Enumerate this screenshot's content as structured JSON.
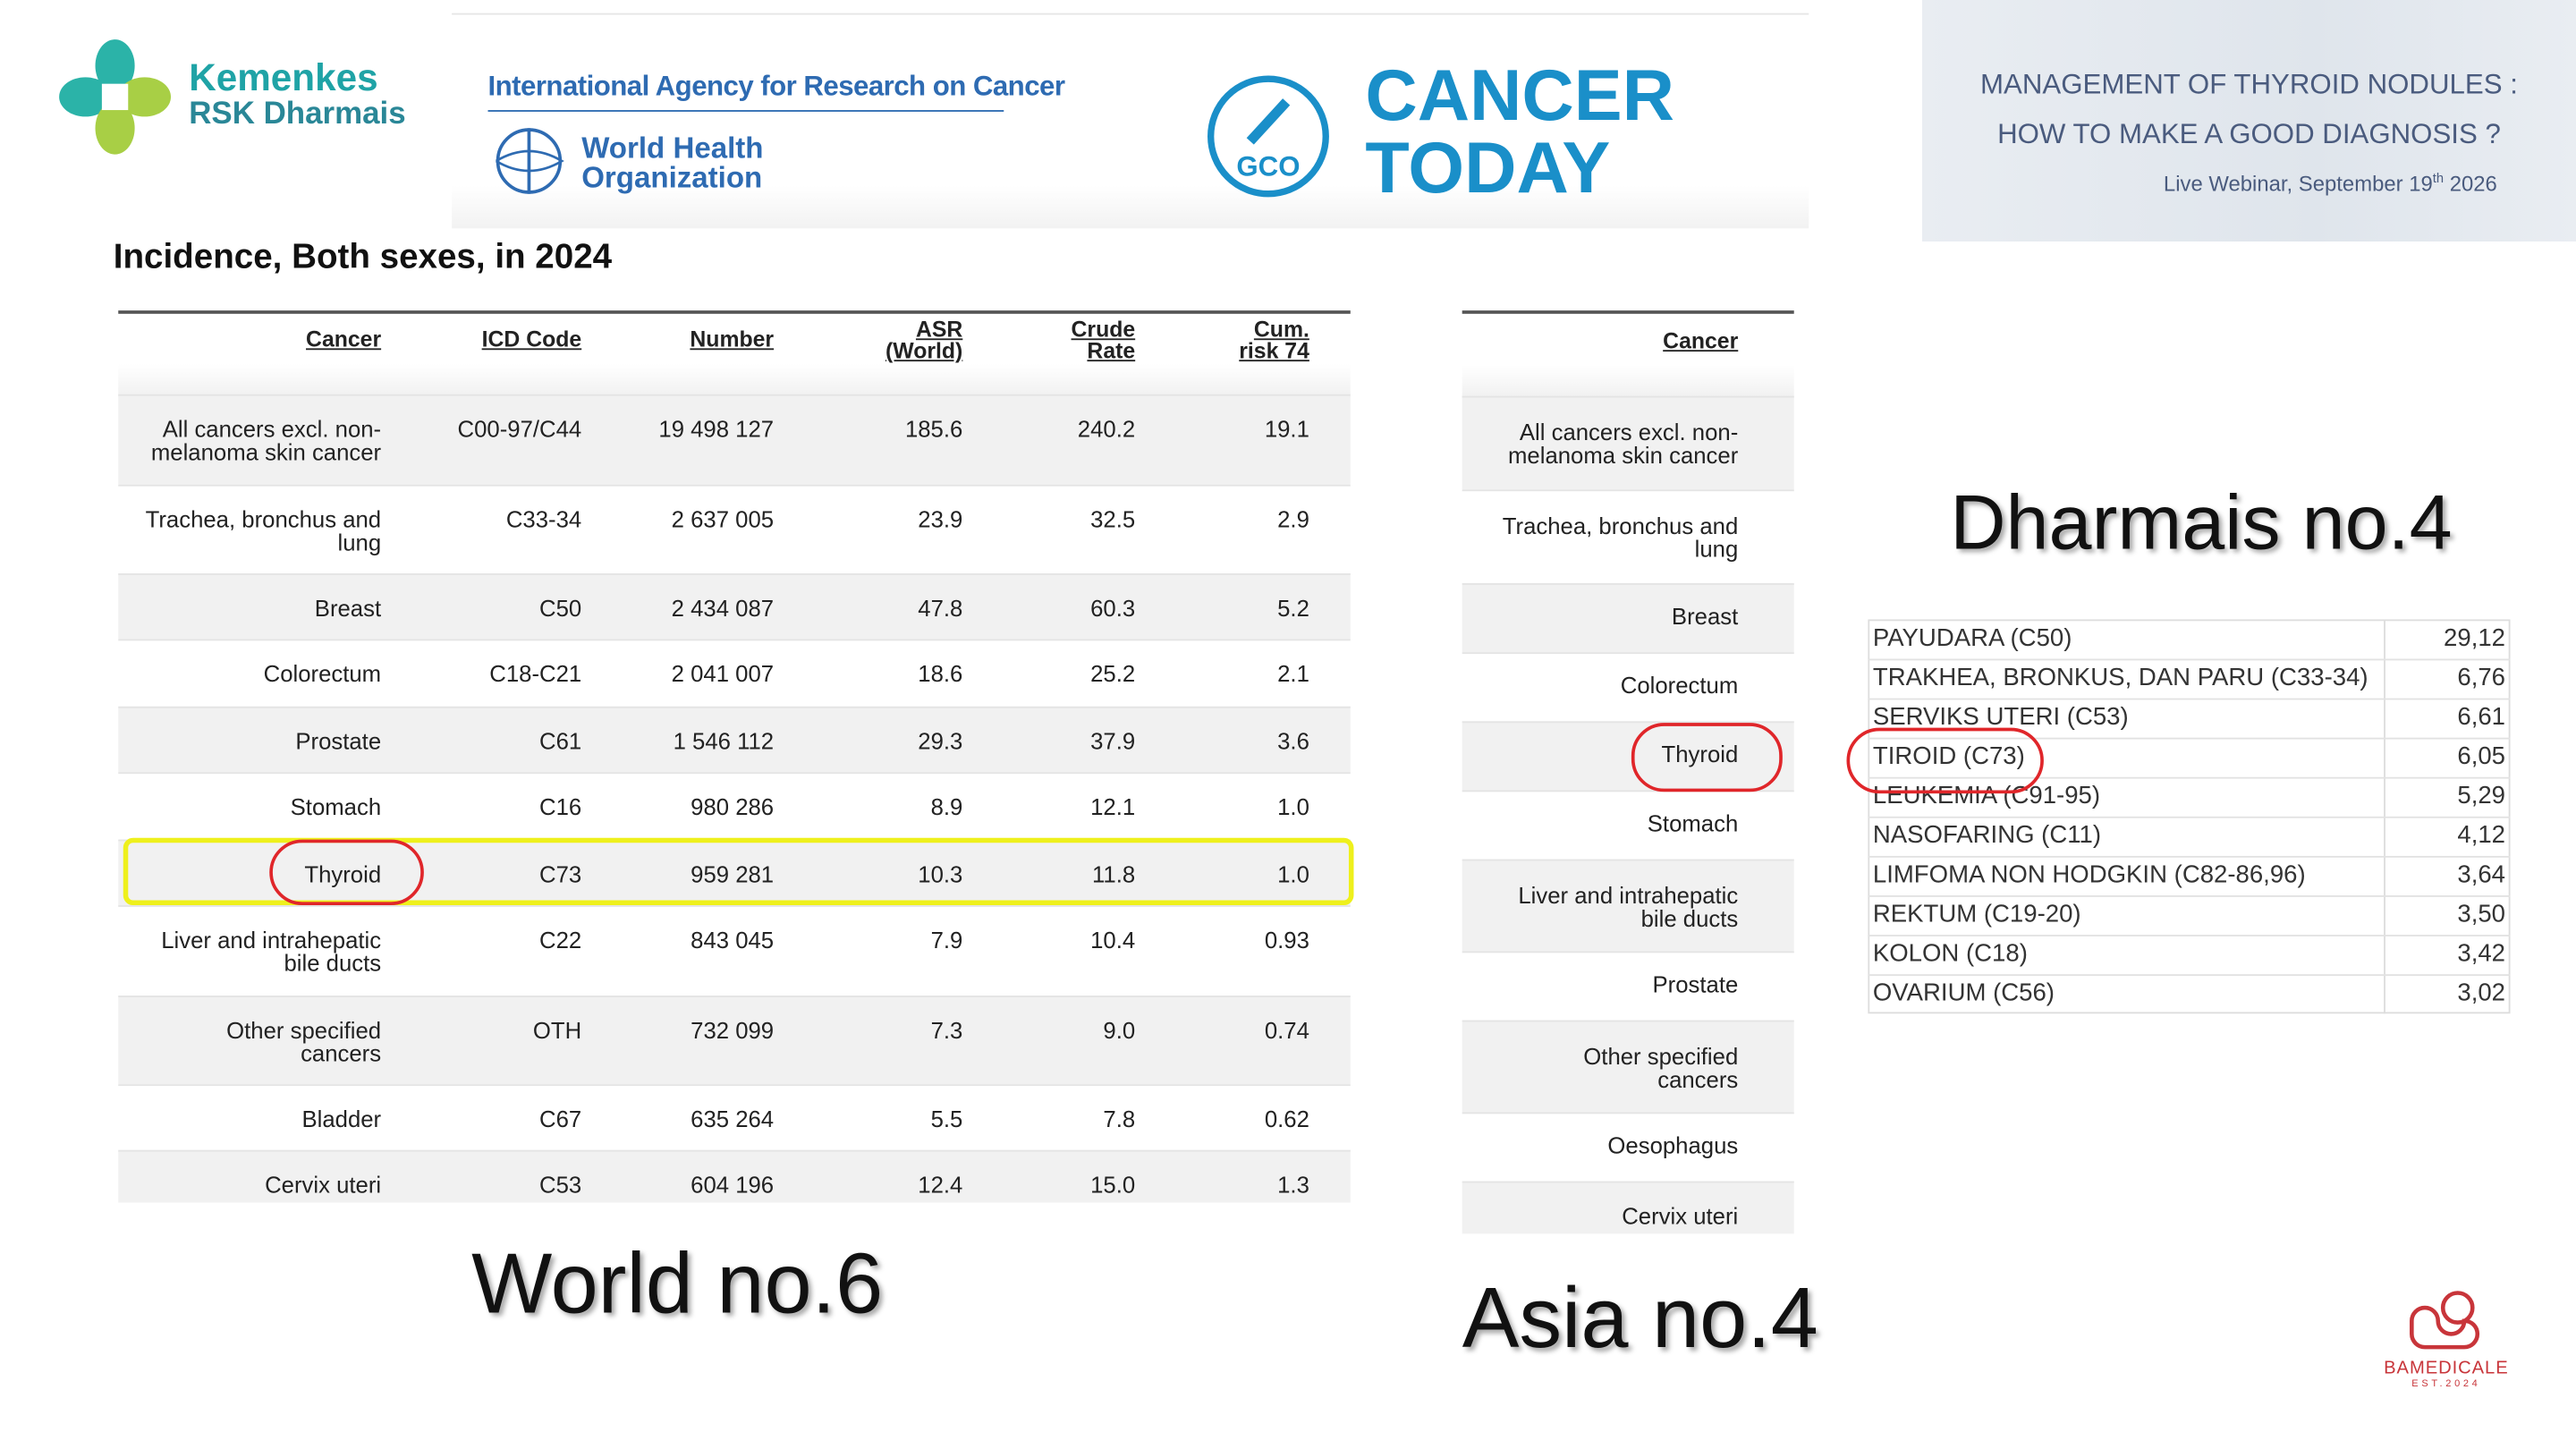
{
  "header": {
    "kemenkes": [
      "Kemenkes",
      "RSK Dharmais"
    ],
    "iarc": "International Agency for Research on Cancer",
    "who": [
      "World Health",
      "Organization"
    ],
    "gco": "GCO",
    "cancer_today": [
      "CANCER",
      "TODAY"
    ]
  },
  "webinar": {
    "title": [
      "MANAGEMENT OF THYROID NODULES :",
      "HOW TO MAKE A GOOD DIAGNOSIS ?"
    ],
    "date": [
      "Live Webinar, September 19",
      "th",
      " 2026"
    ]
  },
  "subtitle": "Incidence, Both sexes, in 2024",
  "world_table": {
    "columns": [
      "Cancer",
      "ICD Code",
      "Number",
      "ASR (World)",
      "Crude Rate",
      "Cum. risk 74"
    ],
    "rows": [
      [
        "All cancers excl. non-melanoma skin cancer",
        "C00-97/C44",
        "19 498 127",
        "185.6",
        "240.2",
        "19.1"
      ],
      [
        "Trachea, bronchus and lung",
        "C33-34",
        "2 637 005",
        "23.9",
        "32.5",
        "2.9"
      ],
      [
        "Breast",
        "C50",
        "2 434 087",
        "47.8",
        "60.3",
        "5.2"
      ],
      [
        "Colorectum",
        "C18-C21",
        "2 041 007",
        "18.6",
        "25.2",
        "2.1"
      ],
      [
        "Prostate",
        "C61",
        "1 546 112",
        "29.3",
        "37.9",
        "3.6"
      ],
      [
        "Stomach",
        "C16",
        "980 286",
        "8.9",
        "12.1",
        "1.0"
      ],
      [
        "Thyroid",
        "C73",
        "959 281",
        "10.3",
        "11.8",
        "1.0"
      ],
      [
        "Liver and intrahepatic bile ducts",
        "C22",
        "843 045",
        "7.9",
        "10.4",
        "0.93"
      ],
      [
        "Other specified cancers",
        "OTH",
        "732 099",
        "7.3",
        "9.0",
        "0.74"
      ],
      [
        "Bladder",
        "C67",
        "635 264",
        "5.5",
        "7.8",
        "0.62"
      ],
      [
        "Cervix uteri",
        "C53",
        "604 196",
        "12.4",
        "15.0",
        "1.3"
      ]
    ]
  },
  "asia_table": {
    "columns": [
      "Cancer"
    ],
    "rows": [
      [
        "All cancers excl. non-melanoma skin cancer"
      ],
      [
        "Trachea, bronchus and lung"
      ],
      [
        "Breast"
      ],
      [
        "Colorectum"
      ],
      [
        "Thyroid"
      ],
      [
        "Stomach"
      ],
      [
        "Liver and intrahepatic bile ducts"
      ],
      [
        "Prostate"
      ],
      [
        "Other specified cancers"
      ],
      [
        "Oesophagus"
      ],
      [
        "Cervix uteri"
      ]
    ]
  },
  "labels": {
    "world": "World no.6",
    "asia": "Asia no.4",
    "dharmais": "Dharmais no.4"
  },
  "dharmais_table": {
    "rows": [
      [
        "PAYUDARA (C50)",
        "29,12"
      ],
      [
        "TRAKHEA, BRONKUS, DAN PARU (C33-34)",
        "6,76"
      ],
      [
        "SERVIKS UTERI (C53)",
        "6,61"
      ],
      [
        "TIROID (C73)",
        "6,05"
      ],
      [
        "LEUKEMIA (C91-95)",
        "5,29"
      ],
      [
        "NASOFARING (C11)",
        "4,12"
      ],
      [
        "LIMFOMA NON HODGKIN (C82-86,96)",
        "3,64"
      ],
      [
        "REKTUM (C19-20)",
        "3,50"
      ],
      [
        "KOLON (C18)",
        "3,42"
      ],
      [
        "OVARIUM (C56)",
        "3,02"
      ]
    ]
  },
  "brand": {
    "name": "BAMEDICALE",
    "est": "EST.2024"
  }
}
